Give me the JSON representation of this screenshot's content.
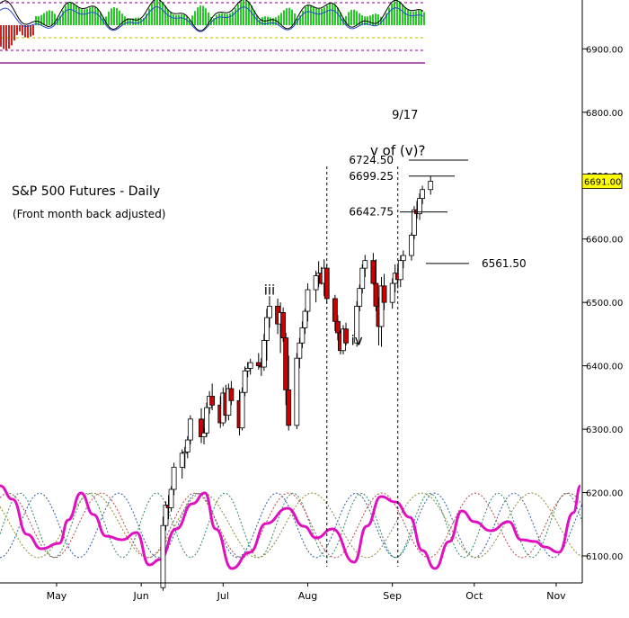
{
  "chart_data": {
    "type": "candlestick",
    "title": "S&P 500 Futures - Daily",
    "subtitle": "(Front month back adjusted)",
    "y_axis": {
      "position": "right",
      "ticks": [
        6100,
        6200,
        6300,
        6400,
        6500,
        6600,
        6700,
        6800,
        6900
      ],
      "tick_labels": [
        "6100.00",
        "6200.00",
        "6300.00",
        "6400.00",
        "6500.00",
        "6600.00",
        "6700.00",
        "6800.00",
        "6900.00"
      ],
      "range": [
        6060,
        7030
      ]
    },
    "x_axis": {
      "labels": [
        "May",
        "Jun",
        "Jul",
        "Aug",
        "Sep",
        "Oct",
        "Nov"
      ]
    },
    "last_price": {
      "value": 6691,
      "label": "6691.00",
      "color": "#ffff00"
    },
    "price_levels": [
      {
        "label": "6724.50",
        "value": 6724.5
      },
      {
        "label": "6699.25",
        "value": 6699.25
      },
      {
        "label": "6642.75",
        "value": 6642.75
      },
      {
        "label": "6561.50",
        "value": 6561.5
      }
    ],
    "wave_labels": [
      {
        "text": "iii",
        "price": 6512,
        "date": "Aug 1"
      },
      {
        "text": "iv",
        "price": 6433,
        "date": "Sep 2"
      },
      {
        "text": "v of (v)?",
        "price": 6732,
        "date": "Sep 17"
      }
    ],
    "date_markers": [
      {
        "date": "Aug 22"
      },
      {
        "date": "Sep 17",
        "label": "9/17"
      }
    ],
    "candles": {
      "up_color": "#ffffff",
      "down_color": "#cc0000",
      "fields": [
        "date",
        "open",
        "high",
        "low",
        "close"
      ],
      "data": [
        [
          "Jun 23",
          6050,
          6162,
          6045,
          6148
        ],
        [
          "Jun 24",
          6148,
          6186,
          6140,
          6180
        ],
        [
          "Jun 25",
          6180,
          6196,
          6158,
          6176
        ],
        [
          "Jun 26",
          6176,
          6210,
          6170,
          6205
        ],
        [
          "Jun 27",
          6205,
          6247,
          6196,
          6240
        ],
        [
          "Jun 30",
          6240,
          6268,
          6222,
          6262
        ],
        [
          "Jul 1",
          6262,
          6272,
          6238,
          6264
        ],
        [
          "Jul 2",
          6264,
          6289,
          6254,
          6283
        ],
        [
          "Jul 3",
          6283,
          6322,
          6276,
          6316
        ],
        [
          "Jul 7",
          6316,
          6333,
          6278,
          6288
        ],
        [
          "Jul 8",
          6288,
          6302,
          6276,
          6294
        ],
        [
          "Jul 9",
          6294,
          6342,
          6288,
          6334
        ],
        [
          "Jul 10",
          6334,
          6360,
          6324,
          6352
        ],
        [
          "Jul 11",
          6352,
          6372,
          6330,
          6338
        ],
        [
          "Jul 14",
          6338,
          6352,
          6302,
          6310
        ],
        [
          "Jul 15",
          6310,
          6366,
          6305,
          6357
        ],
        [
          "Jul 16",
          6357,
          6370,
          6312,
          6322
        ],
        [
          "Jul 17",
          6322,
          6372,
          6314,
          6364
        ],
        [
          "Jul 18",
          6364,
          6376,
          6338,
          6345
        ],
        [
          "Jul 21",
          6345,
          6362,
          6290,
          6302
        ],
        [
          "Jul 22",
          6302,
          6366,
          6298,
          6358
        ],
        [
          "Jul 23",
          6358,
          6399,
          6352,
          6392
        ],
        [
          "Jul 24",
          6392,
          6406,
          6382,
          6396
        ],
        [
          "Jul 25",
          6396,
          6411,
          6386,
          6405
        ],
        [
          "Jul 28",
          6405,
          6420,
          6394,
          6400
        ],
        [
          "Jul 29",
          6400,
          6412,
          6384,
          6398
        ],
        [
          "Jul 30",
          6398,
          6450,
          6392,
          6440
        ],
        [
          "Jul 31",
          6440,
          6490,
          6408,
          6476
        ],
        [
          "Aug 1",
          6476,
          6510,
          6460,
          6494
        ],
        [
          "Aug 4",
          6494,
          6506,
          6450,
          6466
        ],
        [
          "Aug 5",
          6466,
          6500,
          6420,
          6484
        ],
        [
          "Aug 6",
          6484,
          6492,
          6438,
          6444
        ],
        [
          "Aug 7",
          6444,
          6452,
          6338,
          6362
        ],
        [
          "Aug 8",
          6362,
          6416,
          6298,
          6306
        ],
        [
          "Aug 11",
          6306,
          6420,
          6300,
          6412
        ],
        [
          "Aug 12",
          6412,
          6444,
          6396,
          6436
        ],
        [
          "Aug 13",
          6436,
          6470,
          6428,
          6460
        ],
        [
          "Aug 14",
          6460,
          6490,
          6450,
          6486
        ],
        [
          "Aug 15",
          6486,
          6530,
          6470,
          6520
        ],
        [
          "Aug 18",
          6520,
          6550,
          6500,
          6542
        ],
        [
          "Aug 19",
          6542,
          6565,
          6524,
          6546
        ],
        [
          "Aug 20",
          6546,
          6556,
          6528,
          6530
        ],
        [
          "Aug 21",
          6530,
          6568,
          6510,
          6554
        ],
        [
          "Aug 22",
          6554,
          6560,
          6498,
          6506
        ],
        [
          "Aug 25",
          6506,
          6512,
          6455,
          6470
        ],
        [
          "Aug 26",
          6470,
          6480,
          6440,
          6452
        ],
        [
          "Aug 27",
          6452,
          6456,
          6418,
          6424
        ],
        [
          "Aug 28",
          6424,
          6464,
          6418,
          6458
        ],
        [
          "Aug 29",
          6458,
          6468,
          6432,
          6436
        ],
        [
          "Sep 2",
          6436,
          6502,
          6430,
          6494
        ],
        [
          "Sep 3",
          6494,
          6528,
          6486,
          6522
        ],
        [
          "Sep 4",
          6522,
          6560,
          6514,
          6554
        ],
        [
          "Sep 5",
          6554,
          6575,
          6540,
          6566
        ],
        [
          "Sep 8",
          6566,
          6578,
          6528,
          6530
        ],
        [
          "Sep 9",
          6530,
          6568,
          6486,
          6494
        ],
        [
          "Sep 10",
          6494,
          6508,
          6432,
          6462
        ],
        [
          "Sep 11",
          6462,
          6540,
          6430,
          6526
        ],
        [
          "Sep 12",
          6526,
          6545,
          6488,
          6500
        ],
        [
          "Sep 15",
          6500,
          6538,
          6490,
          6530
        ],
        [
          "Sep 16",
          6530,
          6560,
          6516,
          6546
        ],
        [
          "Sep 17",
          6546,
          6558,
          6522,
          6536
        ],
        [
          "Sep 18",
          6536,
          6574,
          6524,
          6566
        ],
        [
          "Sep 19",
          6566,
          6582,
          6554,
          6574
        ],
        [
          "Sep 22",
          6574,
          6610,
          6566,
          6606
        ],
        [
          "Sep 23",
          6606,
          6652,
          6600,
          6646
        ],
        [
          "Sep 24",
          6646,
          6660,
          6632,
          6640
        ],
        [
          "Sep 25",
          6640,
          6672,
          6630,
          6664
        ],
        [
          "Sep 26",
          6664,
          6684,
          6655,
          6678
        ],
        [
          "Sep 29",
          6678,
          6699,
          6670,
          6691
        ]
      ]
    },
    "cycle_indicator": {
      "composite": {
        "name": "composite cycle",
        "color": "#e010c0"
      },
      "components": [
        {
          "name": "cycle 1",
          "color": "#2e5e9e"
        },
        {
          "name": "cycle 2",
          "color": "#2e8a5e"
        },
        {
          "name": "cycle 3",
          "color": "#b04a4a"
        },
        {
          "name": "cycle 4",
          "color": "#8a8a2e"
        }
      ]
    },
    "oscillator_panel": {
      "histogram_up_color": "#22cc22",
      "histogram_down_color": "#cc2222",
      "line_colors": [
        "#000000",
        "#2244cc"
      ],
      "reference_line_colors": [
        "#800080",
        "#800080",
        "#b8b800"
      ]
    },
    "grid": false,
    "legend": null
  }
}
